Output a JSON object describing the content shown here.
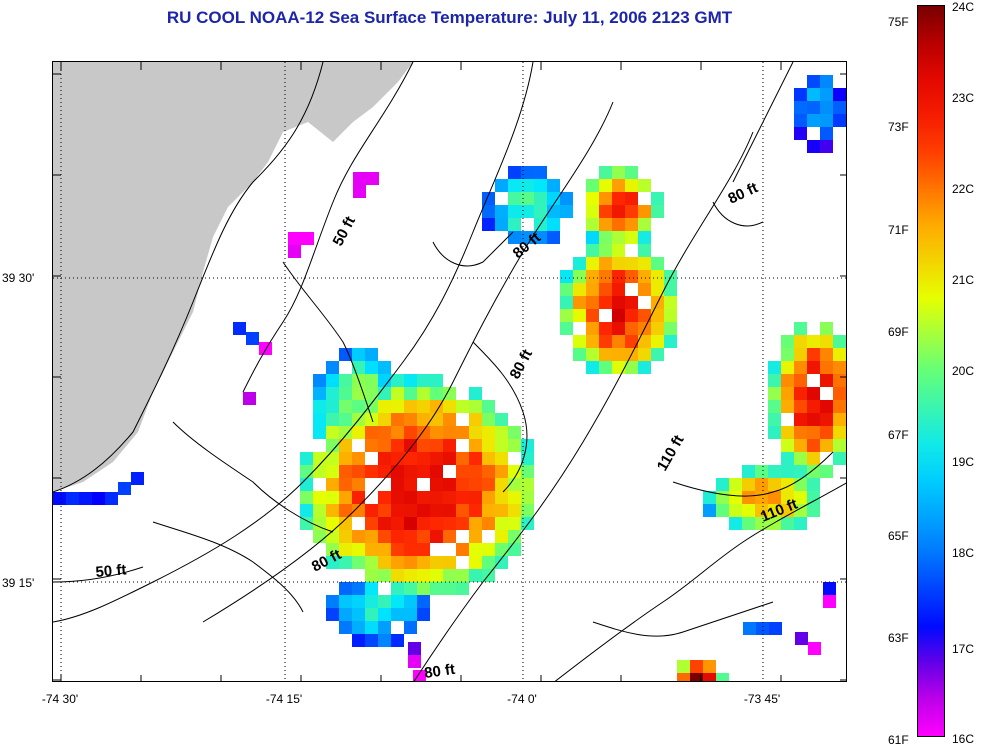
{
  "title": "RU COOL  NOAA-12  Sea Surface Temperature:  July 11, 2006 2123 GMT",
  "axes": {
    "x_ticks": [
      "-74 30'",
      "-74 15'",
      "-74 0'",
      "-73 45'"
    ],
    "y_ticks": [
      "39 30'",
      "39 15'"
    ]
  },
  "depth_labels": [
    "50 ft",
    "80 ft",
    "80 ft",
    "80 ft",
    "110 ft",
    "110 ft",
    "50 ft",
    "80 ft",
    "80 ft"
  ],
  "colorbar": {
    "fahrenheit": [
      "75F",
      "73F",
      "71F",
      "69F",
      "67F",
      "65F",
      "63F",
      "61F"
    ],
    "celsius": [
      "24C",
      "23C",
      "22C",
      "21C",
      "20C",
      "19C",
      "18C",
      "17C",
      "16C"
    ],
    "range_c": [
      16,
      24
    ]
  },
  "colors": {
    "land": "#c8c8c8",
    "title": "#1d25a8",
    "coastline": "#000000"
  }
}
